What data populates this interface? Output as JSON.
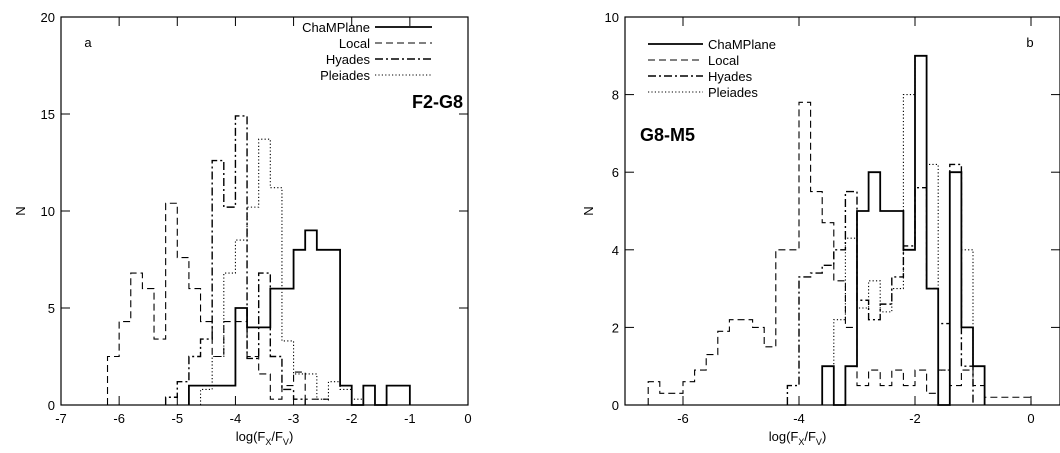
{
  "chart_data": [
    {
      "type": "histogram",
      "panel_letter": "a",
      "spectral_label": "F2-G8",
      "ylabel": "N",
      "xlabel": "log(F",
      "xlabel_sub1": "X",
      "xlabel_mid": "/F",
      "xlabel_sub2": "V",
      "xlabel_end": ")",
      "xlim": [
        -7,
        0
      ],
      "ylim": [
        0,
        20
      ],
      "x_ticks": [
        -7,
        -6,
        -5,
        -4,
        -3,
        -2,
        -1,
        0
      ],
      "y_ticks": [
        0,
        5,
        10,
        15,
        20
      ],
      "x_tick_labels": [
        "-7",
        "-6",
        "-5",
        "-4",
        "-3",
        "-2",
        "-1",
        "0"
      ],
      "y_tick_labels": [
        "0",
        "5",
        "10",
        "15",
        "20"
      ],
      "legend_position": "top-right",
      "series": [
        {
          "name": "ChaMPlane",
          "style": "solid",
          "edges": [
            -4.8,
            -4.6,
            -4.4,
            -4.2,
            -4.0,
            -3.8,
            -3.6,
            -3.4,
            -3.2,
            -3.0,
            -2.8,
            -2.6,
            -2.4,
            -2.2,
            -2.0,
            -1.8,
            -1.6,
            -1.4,
            -1.2,
            -1.0
          ],
          "values": [
            1,
            1,
            1,
            1,
            5,
            4,
            4,
            6,
            6,
            8,
            9,
            8,
            8,
            1,
            0,
            1,
            0,
            1,
            1
          ]
        },
        {
          "name": "Local",
          "style": "dashed",
          "edges": [
            -6.2,
            -6.0,
            -5.8,
            -5.6,
            -5.4,
            -5.2,
            -5.0,
            -4.8,
            -4.6,
            -4.4,
            -4.2,
            -4.0,
            -3.8,
            -3.6,
            -3.4,
            -3.2,
            -3.0,
            -2.8,
            -2.6,
            -2.4
          ],
          "values": [
            2.5,
            4.3,
            6.8,
            6.0,
            3.4,
            10.4,
            7.6,
            6.0,
            4.3,
            2.5,
            4.3,
            4.3,
            2.5,
            1.6,
            0.3,
            1.0,
            1.7,
            0.3,
            0.3
          ]
        },
        {
          "name": "Hyades",
          "style": "dashdot",
          "edges": [
            -5.2,
            -5.0,
            -4.8,
            -4.6,
            -4.4,
            -4.2,
            -4.0,
            -3.8,
            -3.6,
            -3.4,
            -3.2,
            -3.0,
            -2.8
          ],
          "values": [
            0.4,
            1.2,
            2.5,
            3.4,
            12.6,
            10.2,
            14.9,
            2.4,
            6.8,
            2.5,
            0.8,
            0.3
          ]
        },
        {
          "name": "Pleiades",
          "style": "dotted",
          "edges": [
            -4.6,
            -4.4,
            -4.2,
            -4.0,
            -3.8,
            -3.6,
            -3.4,
            -3.2,
            -3.0,
            -2.8,
            -2.6,
            -2.4,
            -2.2,
            -2.0,
            -1.8
          ],
          "values": [
            0.8,
            2.5,
            6.8,
            8.5,
            10.2,
            13.7,
            11.2,
            3.3,
            1.6,
            1.6,
            0.3,
            1.2,
            0.8,
            0.3
          ]
        }
      ]
    },
    {
      "type": "histogram",
      "panel_letter": "b",
      "spectral_label": "G8-M5",
      "ylabel": "N",
      "xlabel": "log(F",
      "xlabel_sub1": "X",
      "xlabel_mid": "/F",
      "xlabel_sub2": "V",
      "xlabel_end": ")",
      "xlim": [
        -7,
        0.5
      ],
      "ylim": [
        0,
        10
      ],
      "x_ticks": [
        -6,
        -4,
        -2,
        0
      ],
      "y_ticks": [
        0,
        2,
        4,
        6,
        8,
        10
      ],
      "x_tick_labels": [
        "-6",
        "-4",
        "-2",
        "0"
      ],
      "y_tick_labels": [
        "0",
        "2",
        "4",
        "6",
        "8",
        "10"
      ],
      "legend_position": "top-left",
      "series": [
        {
          "name": "ChaMPlane",
          "style": "solid",
          "edges": [
            -3.6,
            -3.4,
            -3.2,
            -3.0,
            -2.8,
            -2.6,
            -2.4,
            -2.2,
            -2.0,
            -1.8,
            -1.6,
            -1.4,
            -1.2,
            -1.0,
            -0.8
          ],
          "values": [
            1,
            0,
            1,
            5,
            6,
            5,
            5,
            4,
            9,
            3,
            0,
            6,
            2,
            1
          ]
        },
        {
          "name": "Local",
          "style": "dashed",
          "edges": [
            -6.6,
            -6.4,
            -6.2,
            -6.0,
            -5.8,
            -5.6,
            -5.4,
            -5.2,
            -5.0,
            -4.8,
            -4.6,
            -4.4,
            -4.2,
            -4.0,
            -3.8,
            -3.6,
            -3.4,
            -3.2,
            -3.0,
            -2.8,
            -2.6,
            -2.4,
            -2.2,
            -2.0,
            -1.8,
            -1.6,
            -1.4,
            -1.2,
            -1.0,
            -0.8,
            -0.6,
            -0.4,
            -0.2,
            0.0
          ],
          "values": [
            0.6,
            0.3,
            0.3,
            0.6,
            0.9,
            1.3,
            1.9,
            2.2,
            2.2,
            2.0,
            1.5,
            4.0,
            4.0,
            7.8,
            5.5,
            4.7,
            3.2,
            2.0,
            0.5,
            0.9,
            0.5,
            0.9,
            0.5,
            0.9,
            0.3,
            0.9,
            0.5,
            0.9,
            0.5,
            0.2,
            0.2,
            0.2,
            0.2
          ]
        },
        {
          "name": "Hyades",
          "style": "dashdot",
          "edges": [
            -4.2,
            -4.0,
            -3.8,
            -3.6,
            -3.4,
            -3.2,
            -3.0,
            -2.8,
            -2.6,
            -2.4,
            -2.2,
            -2.0,
            -1.8,
            -1.6,
            -1.4,
            -1.2,
            -1.0
          ],
          "values": [
            0.5,
            3.3,
            3.4,
            3.6,
            4.0,
            5.5,
            2.7,
            2.2,
            2.6,
            3.3,
            4.1,
            5.6,
            3.0,
            2.1,
            6.2,
            1.0
          ]
        },
        {
          "name": "Pleiades",
          "style": "dotted",
          "edges": [
            -3.4,
            -3.2,
            -3.0,
            -2.8,
            -2.6,
            -2.4,
            -2.2,
            -2.0,
            -1.8,
            -1.6,
            -1.4,
            -1.2,
            -1.0,
            -0.8
          ],
          "values": [
            2.2,
            4.3,
            2.5,
            3.2,
            2.4,
            3.0,
            8.0,
            9.0,
            6.2,
            0.9,
            6.0,
            4.0,
            1.0
          ]
        }
      ]
    }
  ]
}
